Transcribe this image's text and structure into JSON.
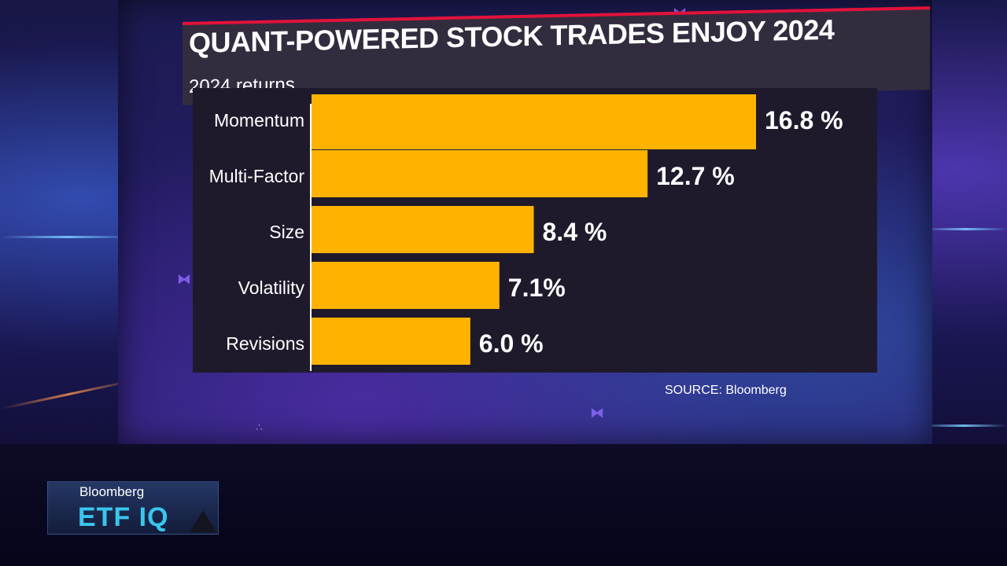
{
  "chart_data": {
    "type": "bar",
    "orientation": "horizontal",
    "title": "QUANT-POWERED STOCK TRADES ENJOY 2024",
    "subtitle": "2024 returns",
    "categories": [
      "Momentum",
      "Multi-Factor",
      "Size",
      "Volatility",
      "Revisions"
    ],
    "values": [
      16.8,
      12.7,
      8.4,
      7.1,
      6.0
    ],
    "value_labels": [
      "16.8 %",
      "12.7 %",
      "8.4 %",
      "7.1%",
      "6.0 %"
    ],
    "xlim": [
      0,
      16.8
    ],
    "grid": false,
    "bar_color": "#ffb300",
    "source": "SOURCE: Bloomberg"
  },
  "broadcast": {
    "network": "Bloomberg",
    "show": "ETF IQ",
    "accent_color": "#e2123a",
    "show_color": "#38c6ee"
  }
}
